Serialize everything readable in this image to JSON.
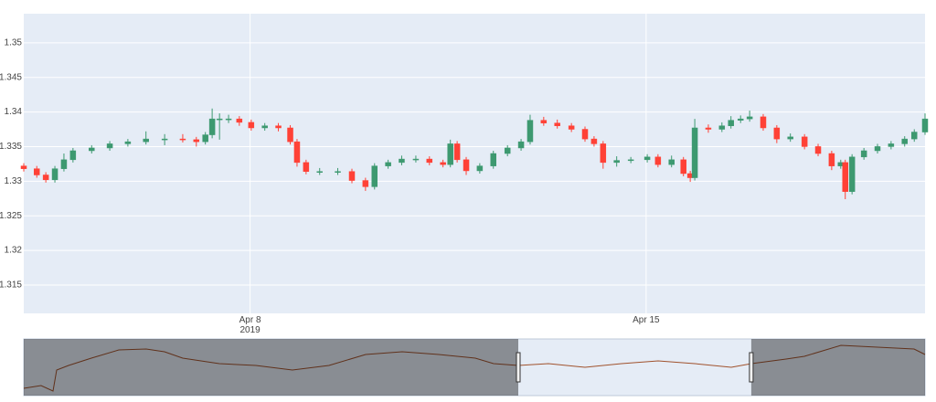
{
  "chart_data": {
    "type": "candlestick",
    "increasing_color": "#3d9970",
    "decreasing_color": "#ff4136",
    "grid": true,
    "xlim": [
      4,
      19.93
    ],
    "ylim": [
      1.3109,
      1.3542
    ],
    "xticks": [
      {
        "value": 8,
        "label": "Apr 8\n2019"
      },
      {
        "value": 15,
        "label": "Apr 15"
      }
    ],
    "yticks": [
      1.315,
      1.32,
      1.325,
      1.33,
      1.335,
      1.34,
      1.345,
      1.35
    ],
    "x": [
      4.0,
      4.23,
      4.39,
      4.55,
      4.71,
      4.87,
      5.2,
      5.52,
      5.84,
      6.16,
      6.49,
      6.81,
      7.05,
      7.21,
      7.33,
      7.46,
      7.62,
      7.81,
      8.02,
      8.26,
      8.5,
      8.71,
      8.83,
      8.99,
      9.23,
      9.55,
      9.8,
      10.04,
      10.2,
      10.44,
      10.68,
      10.93,
      11.17,
      11.41,
      11.54,
      11.66,
      11.82,
      12.06,
      12.3,
      12.55,
      12.79,
      12.95,
      13.19,
      13.43,
      13.68,
      13.92,
      14.08,
      14.24,
      14.48,
      14.73,
      15.02,
      15.21,
      15.45,
      15.66,
      15.78,
      15.86,
      16.1,
      16.34,
      16.5,
      16.67,
      16.83,
      17.07,
      17.31,
      17.55,
      17.8,
      18.04,
      18.28,
      18.44,
      18.52,
      18.64,
      18.85,
      19.09,
      19.33,
      19.57,
      19.74,
      19.93
    ],
    "open": [
      1.3322,
      1.3318,
      1.3309,
      1.3302,
      1.3318,
      1.3331,
      1.3344,
      1.3348,
      1.3354,
      1.3357,
      1.3361,
      1.3361,
      1.336,
      1.3357,
      1.3367,
      1.339,
      1.339,
      1.339,
      1.3385,
      1.3377,
      1.338,
      1.3377,
      1.3357,
      1.3327,
      1.3314,
      1.3314,
      1.3314,
      1.3301,
      1.3292,
      1.3322,
      1.3327,
      1.3332,
      1.3332,
      1.3327,
      1.3324,
      1.3354,
      1.3331,
      1.3315,
      1.3322,
      1.334,
      1.3348,
      1.3357,
      1.3388,
      1.3384,
      1.338,
      1.3375,
      1.3361,
      1.3354,
      1.3327,
      1.333,
      1.3331,
      1.3335,
      1.3324,
      1.3331,
      1.3311,
      1.3305,
      1.3377,
      1.3375,
      1.338,
      1.3388,
      1.339,
      1.3393,
      1.3377,
      1.3361,
      1.3364,
      1.335,
      1.334,
      1.3322,
      1.3327,
      1.3285,
      1.3335,
      1.3344,
      1.335,
      1.3354,
      1.3361,
      1.3371
    ],
    "high": [
      1.3326,
      1.3322,
      1.3313,
      1.3322,
      1.334,
      1.3348,
      1.3352,
      1.3358,
      1.3361,
      1.3372,
      1.3368,
      1.3368,
      1.3364,
      1.3371,
      1.3405,
      1.3398,
      1.3396,
      1.3394,
      1.3389,
      1.3384,
      1.3384,
      1.3381,
      1.3361,
      1.3331,
      1.3319,
      1.3319,
      1.3318,
      1.3305,
      1.3326,
      1.3331,
      1.3337,
      1.3337,
      1.3336,
      1.3331,
      1.336,
      1.3358,
      1.3335,
      1.3326,
      1.3344,
      1.3352,
      1.3361,
      1.3396,
      1.3393,
      1.3389,
      1.3384,
      1.3379,
      1.3365,
      1.3358,
      1.3336,
      1.3335,
      1.3339,
      1.3339,
      1.3337,
      1.3335,
      1.3315,
      1.339,
      1.3382,
      1.3385,
      1.3394,
      1.3395,
      1.3402,
      1.3397,
      1.3381,
      1.3369,
      1.3368,
      1.3354,
      1.3344,
      1.3331,
      1.3331,
      1.3339,
      1.3348,
      1.3354,
      1.3358,
      1.3365,
      1.3375,
      1.3398
    ],
    "low": [
      1.3314,
      1.3305,
      1.3298,
      1.3298,
      1.3314,
      1.3327,
      1.334,
      1.3344,
      1.335,
      1.3353,
      1.3352,
      1.3356,
      1.335,
      1.3353,
      1.3362,
      1.336,
      1.3384,
      1.338,
      1.3373,
      1.3373,
      1.3372,
      1.3353,
      1.3321,
      1.331,
      1.3309,
      1.3309,
      1.3297,
      1.3286,
      1.3288,
      1.3318,
      1.3323,
      1.3327,
      1.3323,
      1.332,
      1.332,
      1.3327,
      1.3309,
      1.3311,
      1.3318,
      1.3336,
      1.3344,
      1.3353,
      1.338,
      1.3376,
      1.3371,
      1.3357,
      1.335,
      1.3318,
      1.3321,
      1.3326,
      1.3327,
      1.332,
      1.332,
      1.3307,
      1.3299,
      1.3301,
      1.337,
      1.3371,
      1.3376,
      1.3384,
      1.3386,
      1.3373,
      1.3355,
      1.3357,
      1.3346,
      1.3336,
      1.3316,
      1.3318,
      1.3274,
      1.3281,
      1.3331,
      1.334,
      1.3346,
      1.335,
      1.3357,
      1.3367
    ],
    "close": [
      1.3318,
      1.3309,
      1.3302,
      1.3318,
      1.3331,
      1.3344,
      1.3348,
      1.3354,
      1.3357,
      1.3361,
      1.3361,
      1.336,
      1.3357,
      1.3367,
      1.339,
      1.339,
      1.339,
      1.3385,
      1.3377,
      1.338,
      1.3377,
      1.3357,
      1.3327,
      1.3314,
      1.3314,
      1.3314,
      1.3301,
      1.3292,
      1.3322,
      1.3327,
      1.3332,
      1.3332,
      1.3327,
      1.3324,
      1.3354,
      1.3331,
      1.3315,
      1.3322,
      1.334,
      1.3348,
      1.3357,
      1.3388,
      1.3384,
      1.338,
      1.3375,
      1.3361,
      1.3354,
      1.3327,
      1.333,
      1.3331,
      1.3335,
      1.3324,
      1.3331,
      1.3311,
      1.3305,
      1.3377,
      1.3375,
      1.338,
      1.3388,
      1.339,
      1.3393,
      1.3377,
      1.3361,
      1.3364,
      1.335,
      1.334,
      1.3322,
      1.3327,
      1.3285,
      1.3335,
      1.3344,
      1.335,
      1.3354,
      1.3361,
      1.3371,
      1.339
    ],
    "rangeslider": {
      "xlim": [
        -29.81,
        31.81
      ],
      "ylim": [
        1.3,
        1.36
      ],
      "x": [
        -29.81,
        -28.63,
        -27.81,
        -27.56,
        -26.75,
        -25.19,
        -23.31,
        -21.44,
        -20.19,
        -18.94,
        -16.44,
        -13.94,
        -11.44,
        -8.94,
        -6.44,
        -3.94,
        -1.44,
        1.06,
        2.31,
        4,
        6.06,
        8.56,
        11.06,
        13.56,
        16.06,
        18.56,
        19.94,
        22.31,
        23.56,
        26.06,
        28.56,
        31.06,
        31.81
      ],
      "close": [
        1.307,
        1.31,
        1.304,
        1.327,
        1.332,
        1.34,
        1.349,
        1.35,
        1.347,
        1.34,
        1.334,
        1.332,
        1.327,
        1.332,
        1.344,
        1.347,
        1.344,
        1.34,
        1.334,
        1.332,
        1.334,
        1.33,
        1.334,
        1.337,
        1.334,
        1.33,
        1.334,
        1.339,
        1.342,
        1.354,
        1.352,
        1.35,
        1.344
      ]
    }
  }
}
